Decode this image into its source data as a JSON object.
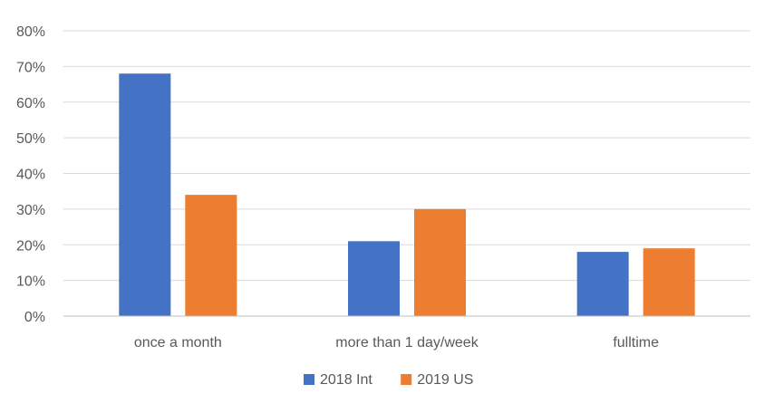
{
  "chart_data": {
    "type": "bar",
    "categories": [
      "once a month",
      "more than 1 day/week",
      "fulltime"
    ],
    "series": [
      {
        "name": "2018 Int",
        "color": "#4472c4",
        "values": [
          68,
          21,
          18
        ]
      },
      {
        "name": "2019 US",
        "color": "#ed7d31",
        "values": [
          34,
          30,
          19
        ]
      }
    ],
    "ylim": [
      0,
      80
    ],
    "yticks": [
      0,
      10,
      20,
      30,
      40,
      50,
      60,
      70,
      80
    ],
    "ytick_format": "percent",
    "grid": true,
    "legend": "bottom-center"
  }
}
